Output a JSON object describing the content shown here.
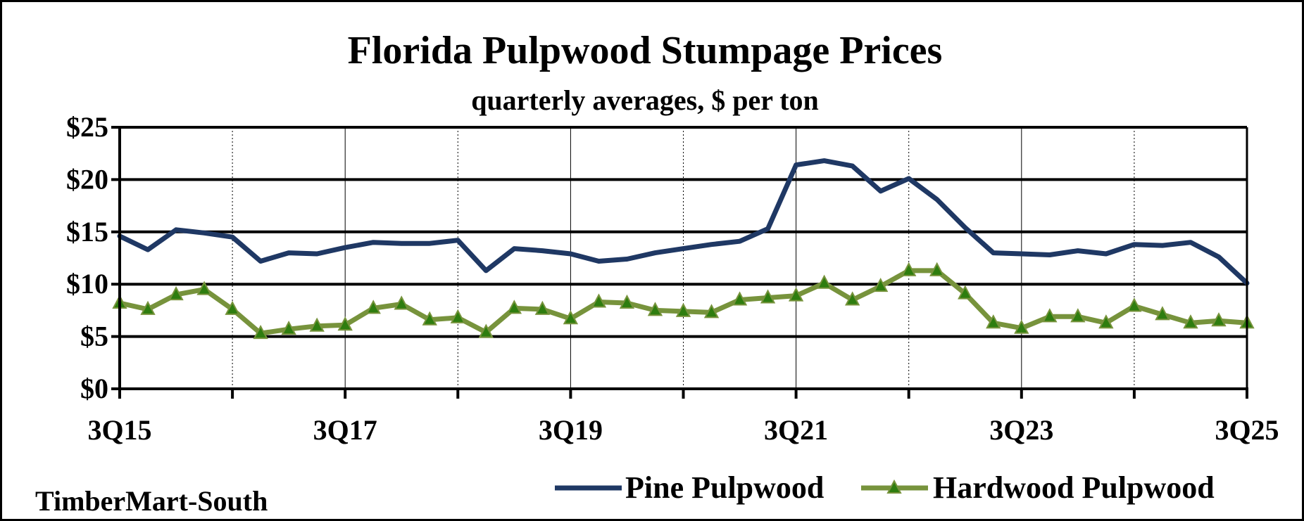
{
  "chart_data": {
    "type": "line",
    "title": "Florida Pulpwood Stumpage Prices",
    "subtitle": "quarterly averages, $ per ton",
    "source": "TimberMart-South",
    "x": [
      "3Q15",
      "4Q15",
      "1Q16",
      "2Q16",
      "3Q16",
      "4Q16",
      "1Q17",
      "2Q17",
      "3Q17",
      "4Q17",
      "1Q18",
      "2Q18",
      "3Q18",
      "4Q18",
      "1Q19",
      "2Q19",
      "3Q19",
      "4Q19",
      "1Q20",
      "2Q20",
      "3Q20",
      "4Q20",
      "1Q21",
      "2Q21",
      "3Q21",
      "4Q21",
      "1Q22",
      "2Q22",
      "3Q22",
      "4Q22",
      "1Q23",
      "2Q23",
      "3Q23",
      "4Q23",
      "1Q24",
      "2Q24",
      "3Q24",
      "4Q24",
      "1Q25",
      "2Q25",
      "3Q25"
    ],
    "x_tick_labels": [
      "3Q15",
      "3Q17",
      "3Q19",
      "3Q21",
      "3Q23",
      "3Q25"
    ],
    "y_tick_labels": [
      "$0",
      "$5",
      "$10",
      "$15",
      "$20",
      "$25"
    ],
    "ylim": [
      0,
      25
    ],
    "grid": {
      "horizontal": true,
      "vertical": true
    },
    "legend_position": "bottom-right",
    "series": [
      {
        "name": "Pine Pulpwood",
        "color": "#1f3864",
        "marker": "none",
        "values": [
          14.6,
          13.3,
          15.2,
          14.9,
          14.5,
          12.2,
          13.0,
          12.9,
          13.5,
          14.0,
          13.9,
          13.9,
          14.2,
          11.3,
          13.4,
          13.2,
          12.9,
          12.2,
          12.4,
          13.0,
          13.4,
          13.8,
          14.1,
          15.3,
          21.4,
          21.8,
          21.3,
          18.9,
          20.1,
          18.1,
          15.4,
          13.0,
          12.9,
          12.8,
          13.2,
          12.9,
          13.8,
          13.7,
          14.0,
          12.6,
          10.1
        ]
      },
      {
        "name": "Hardwood Pulpwood",
        "color": "#77933c",
        "marker": "triangle",
        "marker_color": "#2e7d0f",
        "values": [
          8.2,
          7.6,
          9.0,
          9.5,
          7.6,
          5.3,
          5.7,
          6.0,
          6.1,
          7.7,
          8.1,
          6.6,
          6.8,
          5.4,
          7.7,
          7.6,
          6.7,
          8.3,
          8.2,
          7.5,
          7.4,
          7.3,
          8.5,
          8.7,
          8.9,
          10.1,
          8.5,
          9.8,
          11.3,
          11.3,
          9.1,
          6.3,
          5.8,
          6.9,
          6.9,
          6.3,
          7.9,
          7.1,
          6.3,
          6.5,
          6.3
        ]
      }
    ]
  }
}
